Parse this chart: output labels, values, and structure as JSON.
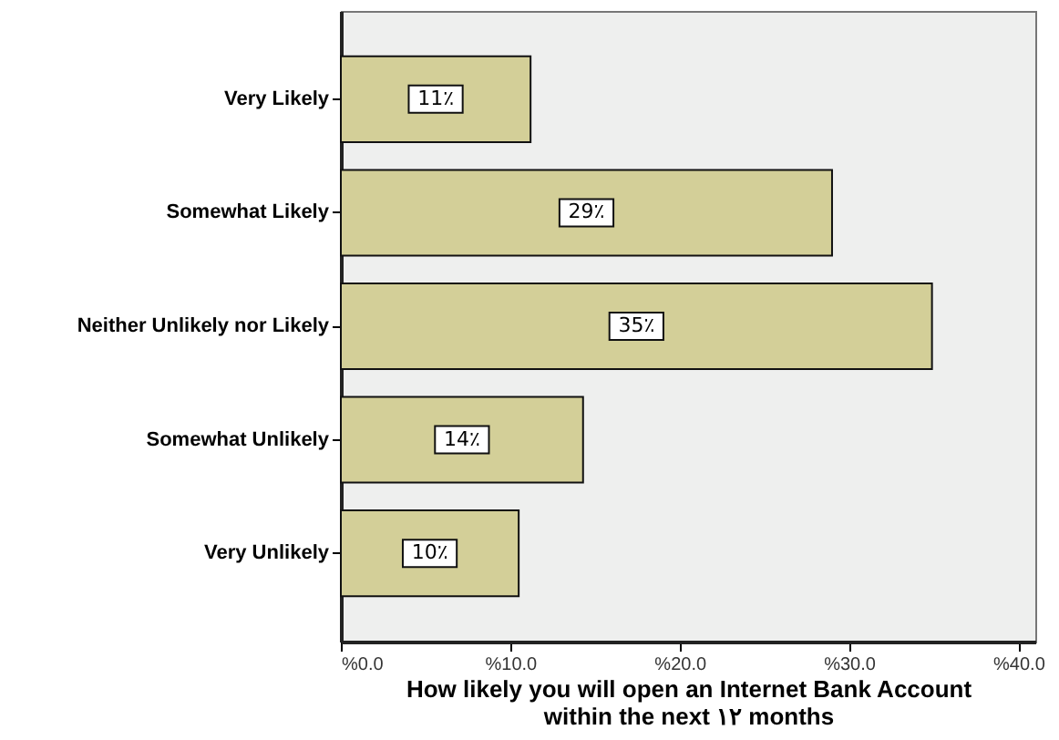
{
  "chart_data": {
    "type": "bar",
    "orientation": "horizontal",
    "categories": [
      "Very Likely",
      "Somewhat Likely",
      "Neither Unlikely nor Likely",
      "Somewhat Unlikely",
      "Very Unlikely"
    ],
    "values": [
      11.2,
      29.0,
      34.9,
      14.3,
      10.5
    ],
    "value_labels": [
      "11٪",
      "29٪",
      "35٪",
      "14٪",
      "10٪"
    ],
    "color": "#d3cf98",
    "xlabel": "How likely you will open an Internet Bank Account within the next ١٢ months",
    "xlim": [
      0,
      41
    ],
    "xticks": [
      {
        "value": 0,
        "label": "%0.0"
      },
      {
        "value": 10,
        "label": "%10.0"
      },
      {
        "value": 20,
        "label": "%20.0"
      },
      {
        "value": 30,
        "label": "%30.0"
      },
      {
        "value": 40,
        "label": "%40.0"
      }
    ]
  }
}
